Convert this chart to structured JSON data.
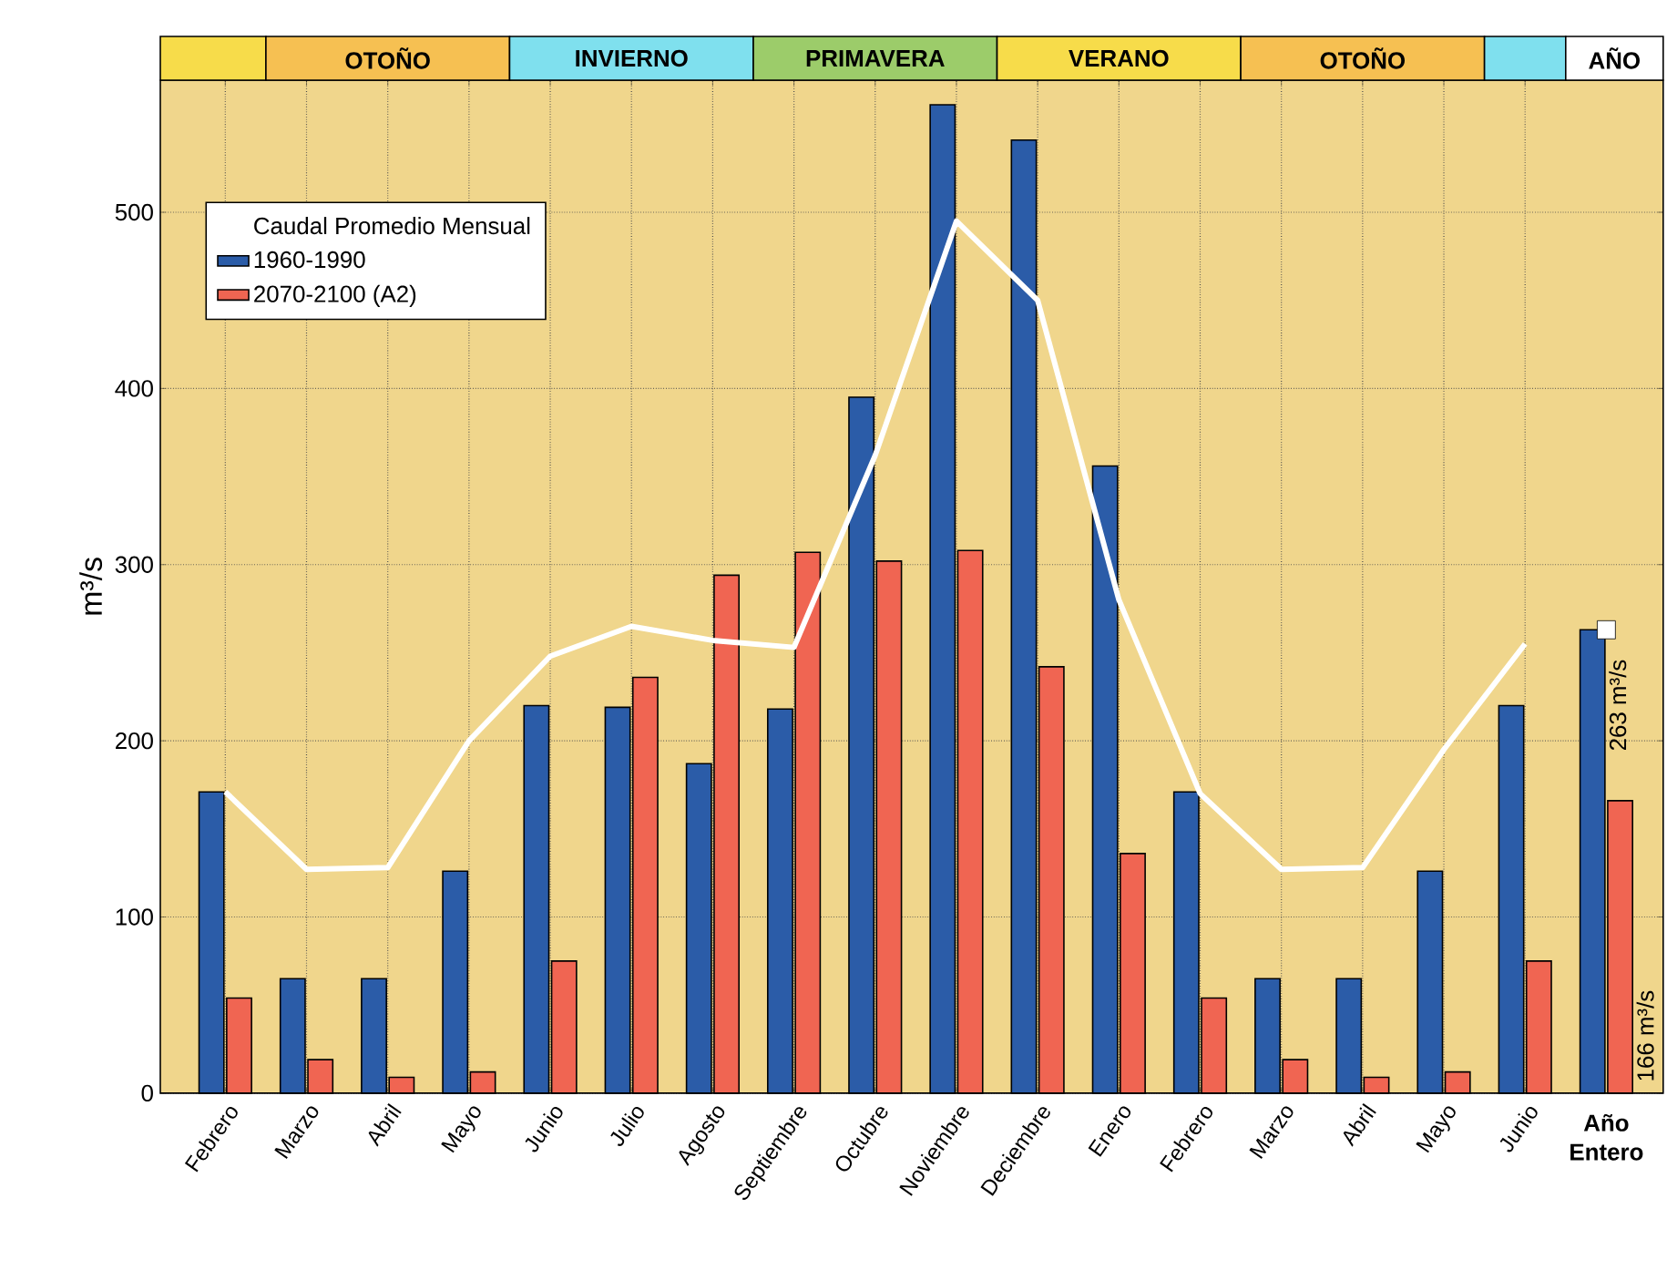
{
  "chart_data": {
    "type": "bar",
    "categories": [
      "Febrero",
      "Marzo",
      "Abril",
      "Mayo",
      "Junio",
      "Julio",
      "Agosto",
      "Septiembre",
      "Octubre",
      "Noviembre",
      "Deciembre",
      "Enero",
      "Febrero",
      "Marzo",
      "Abril",
      "Mayo",
      "Junio",
      "Año Entero"
    ],
    "series": [
      {
        "name": "1960-1990",
        "color": "#2b5ca8",
        "values": [
          171,
          65,
          65,
          126,
          220,
          219,
          187,
          218,
          395,
          561,
          541,
          356,
          171,
          65,
          65,
          126,
          220,
          263
        ],
        "value_labels": [
          null,
          null,
          null,
          null,
          null,
          null,
          null,
          null,
          null,
          null,
          null,
          null,
          null,
          null,
          null,
          null,
          null,
          "263 m³/s"
        ]
      },
      {
        "name": "2070-2100 (A2)",
        "color": "#f06552",
        "values": [
          54,
          19,
          9,
          12,
          75,
          236,
          294,
          307,
          302,
          308,
          242,
          136,
          54,
          19,
          9,
          12,
          75,
          166
        ],
        "value_labels": [
          null,
          null,
          null,
          null,
          null,
          null,
          null,
          null,
          null,
          null,
          null,
          null,
          null,
          null,
          null,
          null,
          null,
          "166 m³/s"
        ]
      },
      {
        "type": "line",
        "color": "#ffffff",
        "values": [
          171,
          127,
          128,
          200,
          248,
          265,
          257,
          253,
          362,
          495,
          450,
          280,
          170,
          127,
          128,
          195,
          255,
          null
        ]
      },
      {
        "type": "scatter",
        "color": "#ffffff",
        "marker": "square",
        "values": [
          null,
          null,
          null,
          null,
          null,
          null,
          null,
          null,
          null,
          null,
          null,
          null,
          null,
          null,
          null,
          null,
          null,
          263
        ]
      }
    ],
    "ylabel": "m³/s",
    "ylim": [
      0,
      575
    ],
    "yticks": [
      0,
      100,
      200,
      300,
      400,
      500
    ],
    "grid": true,
    "legend": "top left",
    "legend_title": "Caudal Promedio Mensual",
    "annotations": [
      "OTOÑO",
      "INVIERNO",
      "PRIMAVERA",
      "VERANO",
      "OTOÑO",
      "AÑO"
    ]
  }
}
